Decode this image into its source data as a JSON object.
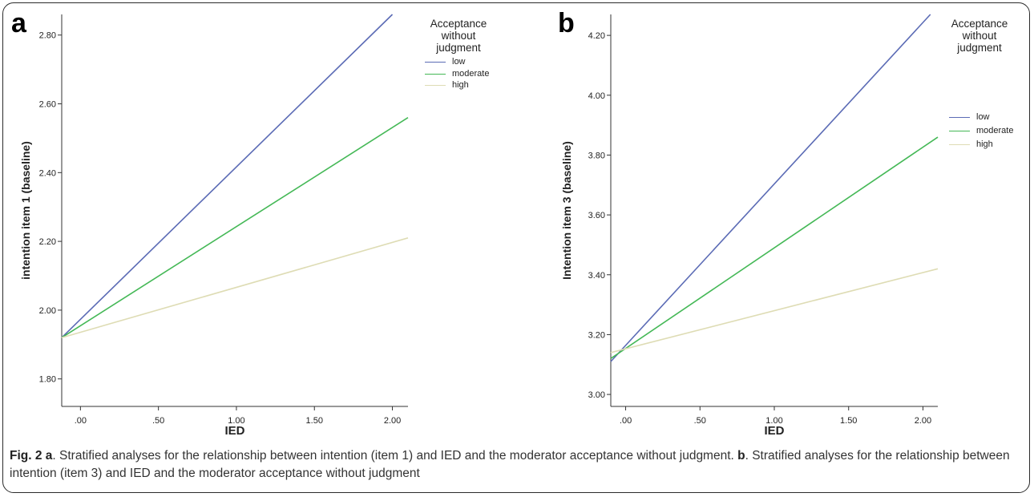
{
  "panels": [
    {
      "letter": "a",
      "legend_title": [
        "Acceptance",
        "without",
        "judgment"
      ],
      "chart_data": {
        "type": "line",
        "xlabel": "IED",
        "ylabel": "intention item 1 (baseline)",
        "xlim": [
          -0.12,
          2.1
        ],
        "ylim": [
          1.72,
          2.86
        ],
        "xticks": [
          0.0,
          0.5,
          1.0,
          1.5,
          2.0
        ],
        "xtick_labels": [
          ".00",
          ".50",
          "1.00",
          "1.50",
          "2.00"
        ],
        "yticks": [
          1.8,
          2.0,
          2.2,
          2.4,
          2.6,
          2.8
        ],
        "ytick_labels": [
          "1.80",
          "2.00",
          "2.20",
          "2.40",
          "2.60",
          "2.80"
        ],
        "grid": false,
        "legend_position": "right",
        "series": [
          {
            "name": "low",
            "color": "#5b6bb5",
            "x": [
              -0.12,
              2.0
            ],
            "y": [
              1.92,
              2.86
            ]
          },
          {
            "name": "moderate",
            "color": "#44b856",
            "x": [
              -0.12,
              2.1
            ],
            "y": [
              1.92,
              2.56
            ]
          },
          {
            "name": "high",
            "color": "#dedcb4",
            "x": [
              -0.12,
              2.1
            ],
            "y": [
              1.92,
              2.21
            ]
          }
        ]
      }
    },
    {
      "letter": "b",
      "legend_title": [
        "Acceptance",
        "without",
        "judgment"
      ],
      "chart_data": {
        "type": "line",
        "xlabel": "IED",
        "ylabel": "Intention item 3 (baseline)",
        "xlim": [
          -0.1,
          2.1
        ],
        "ylim": [
          2.96,
          4.27
        ],
        "xticks": [
          0.0,
          0.5,
          1.0,
          1.5,
          2.0
        ],
        "xtick_labels": [
          ".00",
          ".50",
          "1.00",
          "1.50",
          "2.00"
        ],
        "yticks": [
          3.0,
          3.2,
          3.4,
          3.6,
          3.8,
          4.0,
          4.2
        ],
        "ytick_labels": [
          "3.00",
          "3.20",
          "3.40",
          "3.60",
          "3.80",
          "4.00",
          "4.20"
        ],
        "grid": false,
        "legend_position": "right",
        "series": [
          {
            "name": "low",
            "color": "#5b6bb5",
            "x": [
              -0.1,
              2.05
            ],
            "y": [
              3.11,
              4.27
            ]
          },
          {
            "name": "moderate",
            "color": "#44b856",
            "x": [
              -0.1,
              2.1
            ],
            "y": [
              3.12,
              3.86
            ]
          },
          {
            "name": "high",
            "color": "#dedcb4",
            "x": [
              -0.1,
              2.1
            ],
            "y": [
              3.14,
              3.42
            ]
          }
        ]
      }
    }
  ],
  "caption": {
    "label": "Fig. 2",
    "a_letter": "a",
    "a_text": ". Stratified analyses for the relationship between intention (item 1) and IED and the moderator acceptance without judgment. ",
    "b_letter": "b",
    "b_text": ". Stratified analyses for the relationship between intention (item 3) and IED and the moderator acceptance without judgment"
  }
}
